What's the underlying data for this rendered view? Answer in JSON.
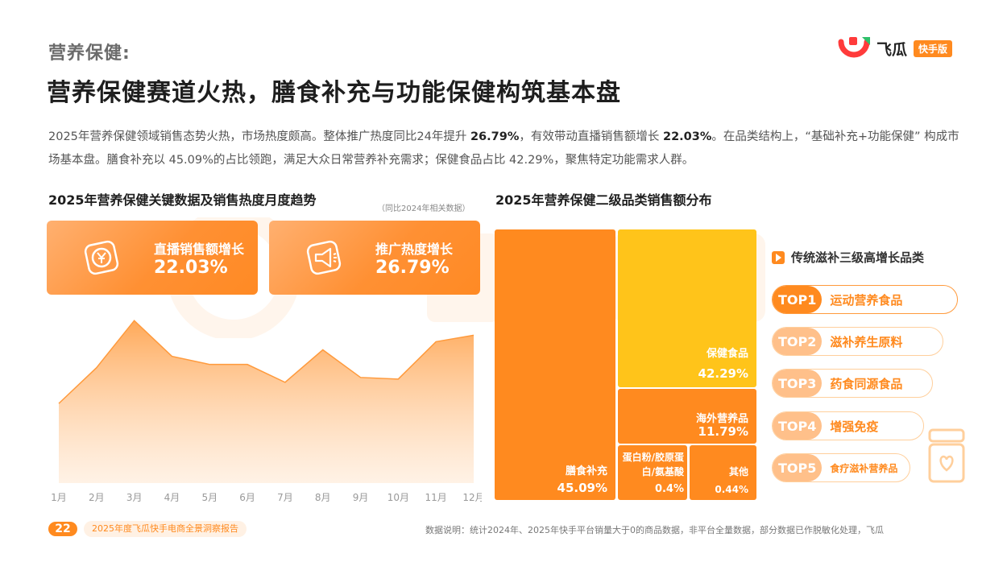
{
  "brand": {
    "name": "飞瓜",
    "badge": "快手版"
  },
  "header": {
    "section": "营养保健:",
    "title": "营养保健赛道火热，膳食补充与功能保健构筑基本盘"
  },
  "intro": {
    "p1": "2025年营养保健领域销售态势火热，市场热度颇高。整体推广热度同比24年提升 ",
    "v1": "26.79%",
    "p2": "，有效带动直播销售额增长 ",
    "v2": "22.03%",
    "p3": "。在品类结构上，“基础补充+功能保健” 构成市场基本盘。膳食补充以 45.09%的占比领跑，满足大众日常营养补充需求；保健食品占比 42.29%，聚焦特定功能需求人群。"
  },
  "left": {
    "title": "2025年营养保健关键数据及销售热度月度趋势",
    "note": "（同比2024年相关数据）",
    "kpis": [
      {
        "label": "直播销售额增长",
        "value": "22.03%",
        "icon": "yuan-coin-icon"
      },
      {
        "label": "推广热度增长",
        "value": "26.79%",
        "icon": "megaphone-icon"
      }
    ]
  },
  "chart_data": {
    "type": "area",
    "title": "销售热度月度趋势",
    "categories": [
      "1月",
      "2月",
      "3月",
      "4月",
      "5月",
      "6月",
      "7月",
      "8月",
      "9月",
      "10月",
      "11月",
      "12月"
    ],
    "values": [
      49,
      71,
      100,
      78,
      73,
      73,
      62,
      82,
      65,
      64,
      87,
      91
    ],
    "ylim": [
      0,
      110
    ],
    "xlabel": "",
    "ylabel": "",
    "grid": false,
    "color": "#ff9a3c"
  },
  "right": {
    "title": "2025年营养保健二级品类销售额分布",
    "treemap": [
      {
        "name": "膳食补充",
        "pct": "45.09%",
        "color": "#ff8a1f"
      },
      {
        "name": "保健食品",
        "pct": "42.29%",
        "color": "#ffc41a"
      },
      {
        "name": "海外营养品",
        "pct": "11.79%",
        "color": "#ff8a1f"
      },
      {
        "name": "蛋白粉/胶原蛋白/氨基酸",
        "pct": "0.4%",
        "color": "#ff8a1f"
      },
      {
        "name": "其他",
        "pct": "0.44%",
        "color": "#ff8a1f"
      }
    ]
  },
  "top": {
    "title": "传统滋补三级高增长品类",
    "items": [
      {
        "rank": "TOP1",
        "name": "运动营养食品"
      },
      {
        "rank": "TOP2",
        "name": "滋补养生原料"
      },
      {
        "rank": "TOP3",
        "name": "药食同源食品"
      },
      {
        "rank": "TOP4",
        "name": "增强免疫"
      },
      {
        "rank": "TOP5",
        "name": "食疗滋补营养品"
      }
    ]
  },
  "footer": {
    "page": "22",
    "report": "2025年度飞瓜快手电商全景洞察报告",
    "note": "数据说明：统计2024年、2025年快手平台销量大于0的商品数据，非平台全量数据，部分数据已作脱敏化处理，飞瓜"
  }
}
